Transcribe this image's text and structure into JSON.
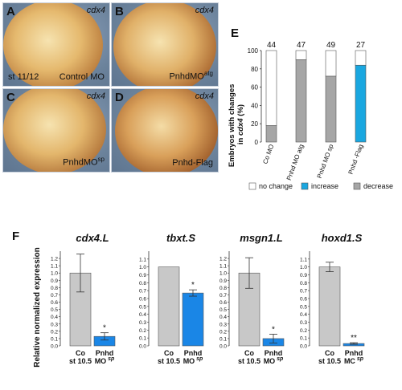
{
  "panels": [
    {
      "label": "A",
      "gene": "cdx4",
      "condition": "Control MO",
      "stage": "st 11/12"
    },
    {
      "label": "B",
      "gene": "cdx4",
      "condition": "PnhdMO",
      "condition_sup": "atg"
    },
    {
      "label": "C",
      "gene": "cdx4",
      "condition": "PnhdMO",
      "condition_sup": "sp"
    },
    {
      "label": "D",
      "gene": "cdx4",
      "condition": "Pnhd-Flag"
    }
  ],
  "panel_e": {
    "label": "E",
    "ylabel_line1": "Embryos with changes",
    "ylabel_line2a": "in ",
    "ylabel_gene": "cdx4",
    "ylabel_line2b": " (%)",
    "legend": [
      {
        "text": "no change",
        "color": "#ffffff"
      },
      {
        "text": "increase",
        "color": "#1aa7e0"
      },
      {
        "text": "decrease",
        "color": "#a6a6a6"
      }
    ]
  },
  "panel_f": {
    "label": "F",
    "ylabel": "Relative normalized expression"
  },
  "chart_data": [
    {
      "type": "bar",
      "stacked": true,
      "categories": [
        "Co MO",
        "Pnhd MO atg",
        "Pnhd MO sp",
        "Pnhd -Flag"
      ],
      "counts": [
        "44",
        "47",
        "49",
        "27"
      ],
      "series": [
        {
          "name": "no change",
          "values": [
            82,
            10,
            28,
            16
          ]
        },
        {
          "name": "increase",
          "values": [
            0,
            0,
            0,
            84
          ]
        },
        {
          "name": "decrease",
          "values": [
            18,
            90,
            72,
            0
          ]
        }
      ],
      "ylim": [
        0,
        100
      ],
      "yticks": [
        "0",
        "20",
        "40",
        "60",
        "80",
        "100"
      ]
    },
    {
      "type": "bar",
      "title": "cdx4.L",
      "categories": [
        {
          "l1": "Co",
          "l2": "st 10.5"
        },
        {
          "l1": "Pnhd",
          "l2": "MO",
          "sup": "sp"
        }
      ],
      "values": [
        1.0,
        0.13
      ],
      "errors": [
        0.26,
        0.05
      ],
      "annotations": [
        "",
        "*"
      ],
      "ylim": [
        0,
        1.3
      ],
      "yticks": [
        "0.0",
        "0.1",
        "0.2",
        "0.3",
        "0.4",
        "0.5",
        "0.6",
        "0.7",
        "0.8",
        "0.9",
        "1.0",
        "1.1",
        "1.2"
      ]
    },
    {
      "type": "bar",
      "title": "tbxt.S",
      "categories": [
        {
          "l1": "Co",
          "l2": "st 10.5"
        },
        {
          "l1": "Pnhd",
          "l2": "MO",
          "sup": "sp"
        }
      ],
      "values": [
        1.0,
        0.67
      ],
      "errors": [
        0.0,
        0.04
      ],
      "annotations": [
        "",
        "*"
      ],
      "ylim": [
        0,
        1.2
      ],
      "yticks": [
        "0.0",
        "0.1",
        "0.2",
        "0.3",
        "0.4",
        "0.5",
        "0.6",
        "0.7",
        "0.8",
        "0.9",
        "1.0",
        "1.1"
      ]
    },
    {
      "type": "bar",
      "title": "msgn1.L",
      "categories": [
        {
          "l1": "Co",
          "l2": "st 10.5"
        },
        {
          "l1": "Pnhd",
          "l2": "MO",
          "sup": "sp"
        }
      ],
      "values": [
        1.0,
        0.1
      ],
      "errors": [
        0.21,
        0.06
      ],
      "annotations": [
        "",
        "*"
      ],
      "ylim": [
        0,
        1.3
      ],
      "yticks": [
        "0.0",
        "0.1",
        "0.2",
        "0.3",
        "0.4",
        "0.5",
        "0.6",
        "0.7",
        "0.8",
        "0.9",
        "1.0",
        "1.1",
        "1.2"
      ]
    },
    {
      "type": "bar",
      "title": "hoxd1.S",
      "categories": [
        {
          "l1": "Co",
          "l2": "st 10.5"
        },
        {
          "l1": "Pnhd",
          "l2": "MC",
          "sup": "sp"
        }
      ],
      "values": [
        1.0,
        0.03
      ],
      "errors": [
        0.06,
        0.01
      ],
      "annotations": [
        "",
        "**"
      ],
      "ylim": [
        0,
        1.2
      ],
      "yticks": [
        "0.0",
        "0.1",
        "0.2",
        "0.3",
        "0.4",
        "0.5",
        "0.6",
        "0.7",
        "0.8",
        "0.9",
        "1.0",
        "1.1"
      ]
    }
  ]
}
